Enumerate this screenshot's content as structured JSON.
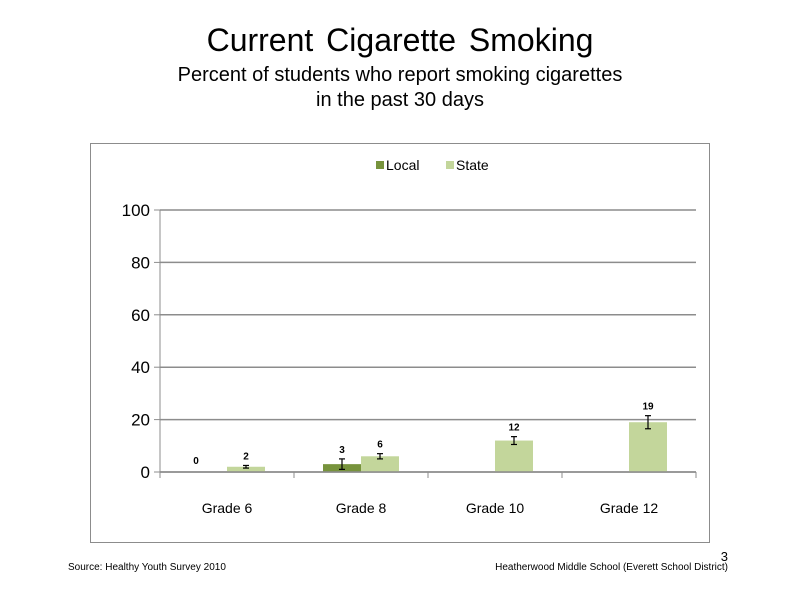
{
  "slide": {
    "title": "Current Cigarette Smoking",
    "subtitle_line1": "Percent of students who report smoking cigarettes",
    "subtitle_line2": "in the past 30 days",
    "source": "Source: Healthy Youth Survey 2010",
    "school": "Heatherwood Middle  School (Everett School District)",
    "page_number": "3"
  },
  "chart_data": {
    "type": "bar",
    "categories": [
      "Grade 6",
      "Grade 8",
      "Grade 10",
      "Grade 12"
    ],
    "series": [
      {
        "name": "Local",
        "values": [
          0,
          3,
          null,
          null
        ],
        "labels": [
          "0",
          "3",
          "",
          ""
        ],
        "error": [
          null,
          2,
          null,
          null
        ],
        "color": "#77933c"
      },
      {
        "name": "State",
        "values": [
          2,
          6,
          12,
          19
        ],
        "labels": [
          "2",
          "6",
          "12",
          "19"
        ],
        "error": [
          0.5,
          1,
          1.5,
          2.5
        ],
        "color": "#c3d69b"
      }
    ],
    "ylim": [
      0,
      100
    ],
    "yticks": [
      0,
      20,
      40,
      60,
      80,
      100
    ],
    "grid": true,
    "legend": "top"
  }
}
